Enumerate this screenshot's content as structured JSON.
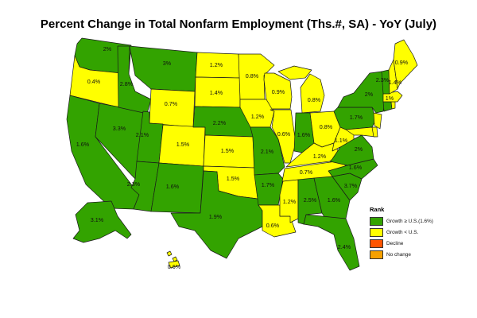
{
  "title": "Percent Change in Total Nonfarm Employment (Ths.#, SA) - YoY (July)",
  "legend": {
    "title": "Rank",
    "items": [
      {
        "label": "Growth ≥ U.S.(1.6%)",
        "color": "#33a300"
      },
      {
        "label": "Growth < U.S.",
        "color": "#ffff00"
      },
      {
        "label": "Decline",
        "color": "#ff5500"
      },
      {
        "label": "No change",
        "color": "#f5a000"
      }
    ]
  },
  "state_values": {
    "WA": "2%",
    "OR": "0.4%",
    "CA": "1.6%",
    "NV": "3.3%",
    "ID": "2.8%",
    "MT": "3%",
    "WY": "0.7%",
    "UT": "2.1%",
    "AZ": "2.3%",
    "CO": "1.5%",
    "NM": "1.6%",
    "ND": "1.2%",
    "SD": "1.4%",
    "NE": "2.2%",
    "KS": "1.5%",
    "OK": "1.5%",
    "TX": "1.9%",
    "MN": "0.8%",
    "IA": "1.2%",
    "MO": "2.1%",
    "AR": "1.7%",
    "LA": "0.6%",
    "WI": "0.9%",
    "IL": "0.6%",
    "MI": "0.8%",
    "IN": "1.6%",
    "OH": "0.8%",
    "KY": "1.2%",
    "TN": "0.7%",
    "MS": "1.2%",
    "AL": "2.5%",
    "GA": "1.6%",
    "FL": "2.4%",
    "SC": "3.7%",
    "NC": "1.6%",
    "VA": "2%",
    "WV": "1.1%",
    "PA": "1.7%",
    "NY": "2%",
    "VT": "2.3%",
    "NH": "1.4%",
    "ME": "0.9%",
    "MA": "1%",
    "AK": "3.1%",
    "HI": "0.6%"
  }
}
